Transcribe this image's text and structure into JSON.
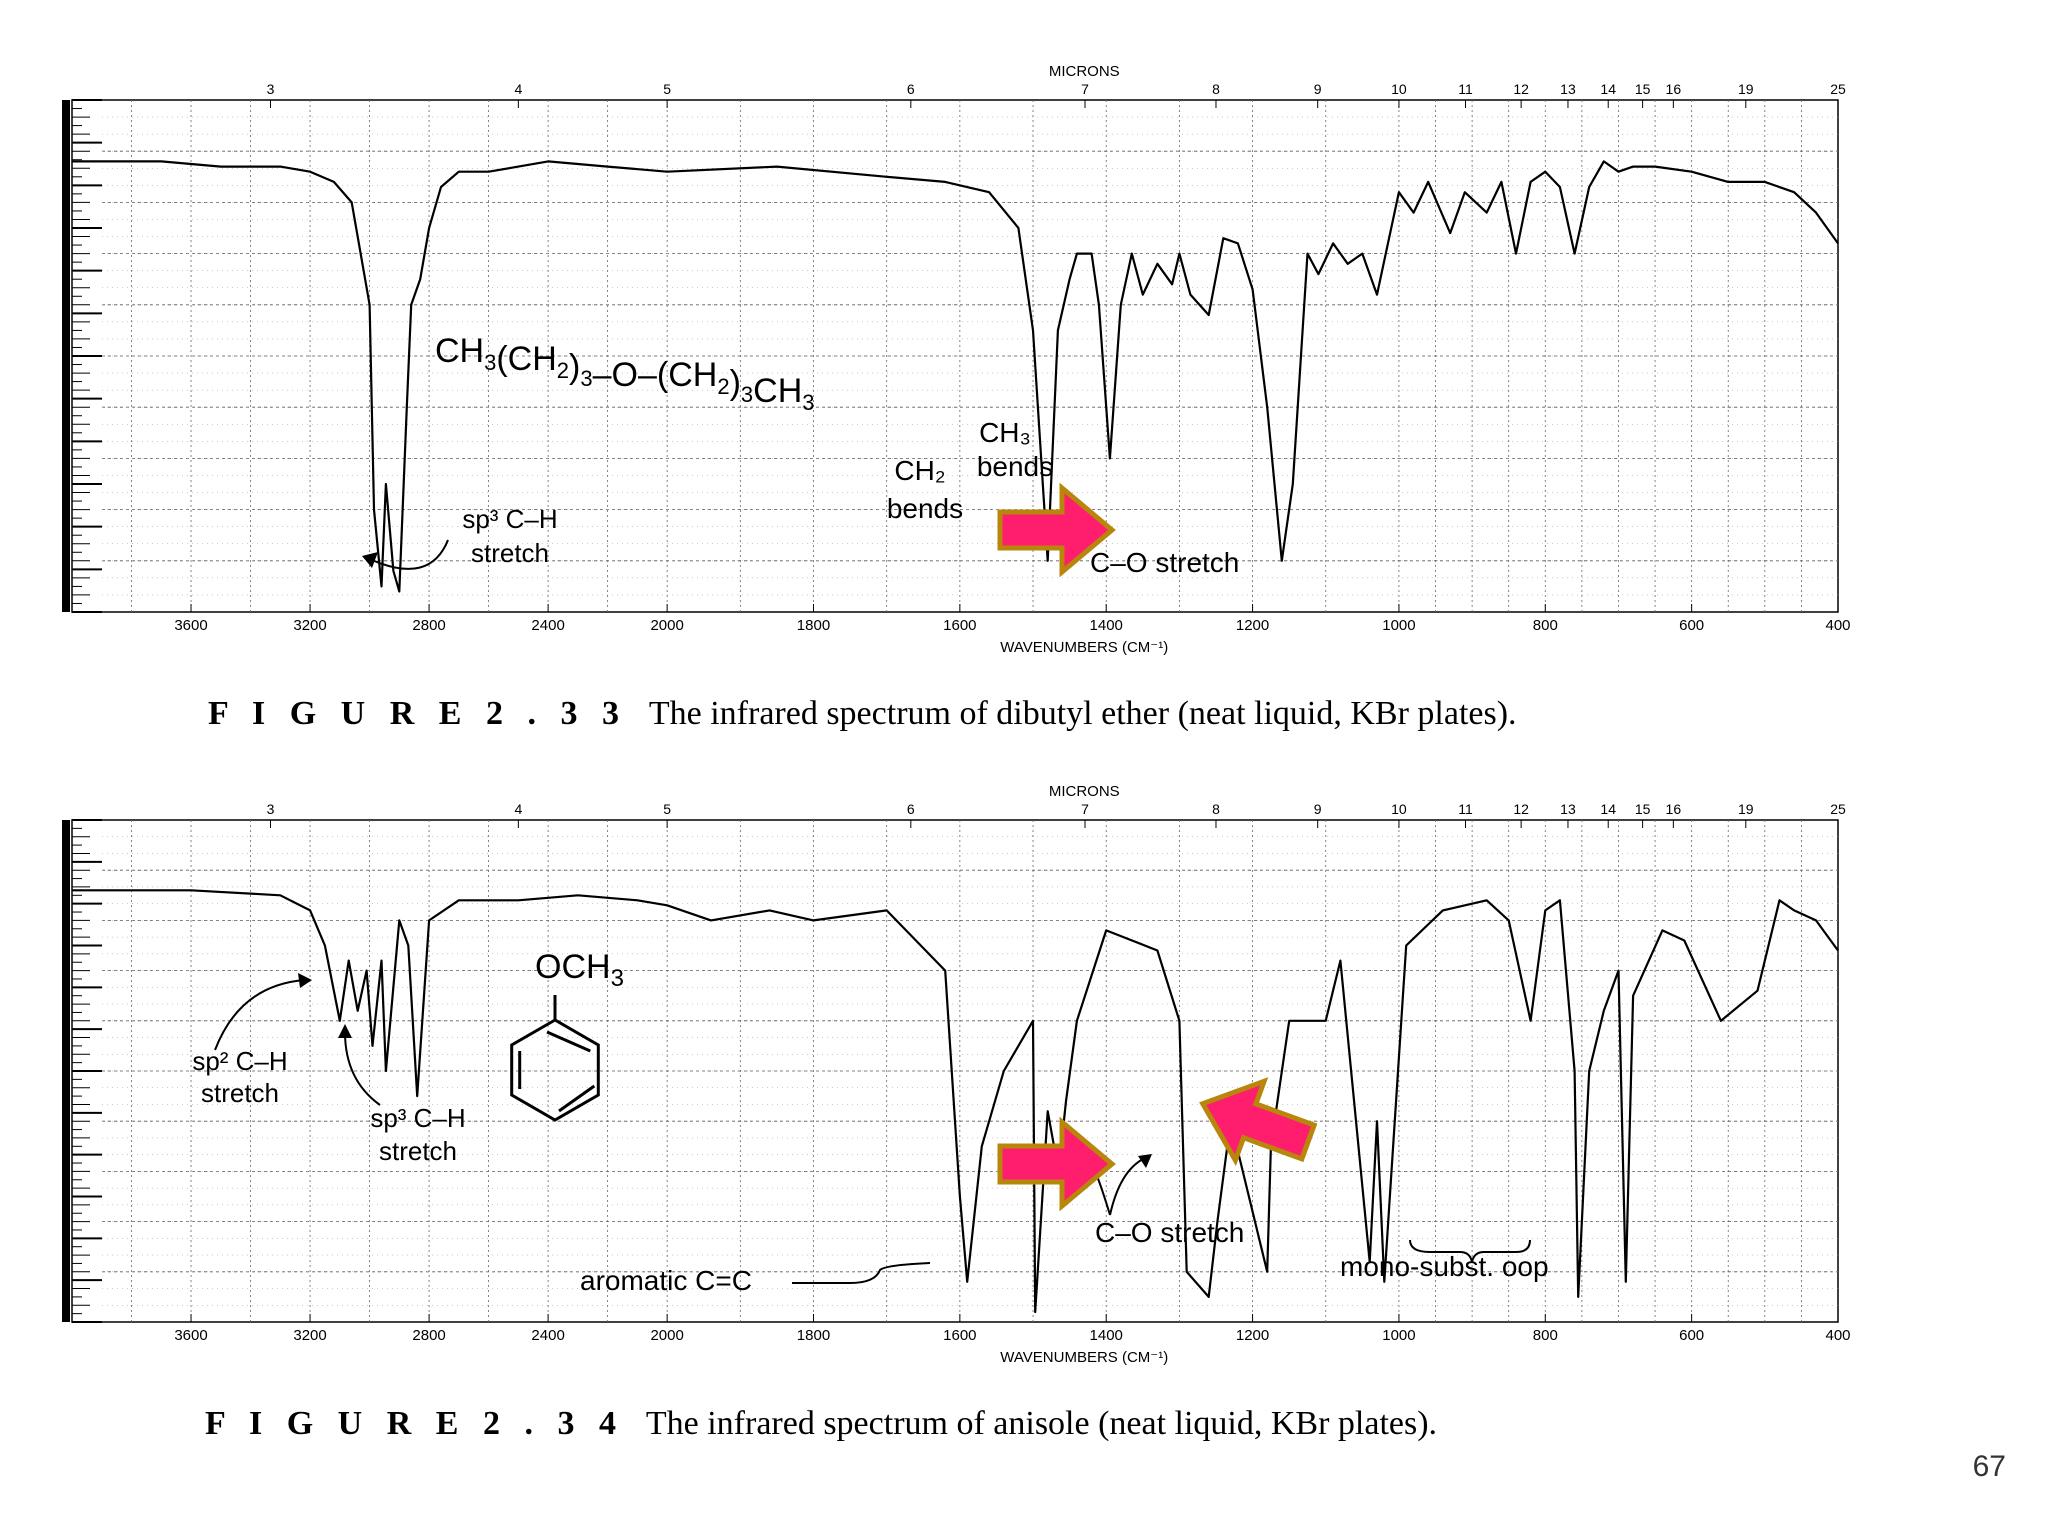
{
  "page_number": "67",
  "colors": {
    "arrow_fill": "#ff1e6e",
    "arrow_stroke": "#b8860b",
    "ink": "#000000"
  },
  "chart_data": [
    {
      "type": "line",
      "x_axis_label": "WAVENUMBERS (CM⁻¹)",
      "x_ticks": [
        "3600",
        "3200",
        "2800",
        "2400",
        "2000",
        "1800",
        "1600",
        "1400",
        "1200",
        "1000",
        "800",
        "600",
        "400"
      ],
      "top_axis_label": "MICRONS",
      "top_ticks": [
        "3",
        "4",
        "5",
        "6",
        "7",
        "8",
        "9",
        "10",
        "11",
        "12",
        "13",
        "14",
        "15",
        "16",
        "19",
        "25"
      ],
      "xlim": [
        4000,
        400
      ],
      "ylim": [
        0,
        100
      ],
      "grid": true,
      "formula": {
        "base": "CH",
        "parts": [
          "3",
          "(CH",
          "2",
          ")",
          "3",
          "–O–(CH",
          "2",
          ")",
          "3",
          "CH",
          "3"
        ]
      },
      "annotations": [
        {
          "lines": [
            "sp³ C–H",
            "stretch"
          ]
        },
        {
          "lines": [
            "CH₃",
            "bends"
          ]
        },
        {
          "lines": [
            "CH₂",
            "bends"
          ]
        },
        {
          "lines": [
            "C–O stretch"
          ]
        }
      ],
      "caption_label": "F I G U R E   2 . 3 3",
      "caption_text": "The infrared spectrum of dibutyl ether (neat liquid, KBr plates).",
      "series": [
        {
          "x": [
            4000,
            3700,
            3500,
            3300,
            3200,
            3120,
            3060,
            3000,
            2985,
            2960,
            2945,
            2920,
            2900,
            2875,
            2860,
            2830,
            2800,
            2760,
            2700,
            2600,
            2500,
            2400,
            2200,
            2000,
            1850,
            1700,
            1620,
            1560,
            1520,
            1500,
            1480,
            1466,
            1450,
            1440,
            1420,
            1410,
            1395,
            1380,
            1365,
            1350,
            1330,
            1310,
            1300,
            1285,
            1260,
            1240,
            1220,
            1200,
            1180,
            1160,
            1145,
            1125,
            1110,
            1090,
            1070,
            1050,
            1030,
            1000,
            980,
            960,
            930,
            910,
            880,
            860,
            840,
            820,
            800,
            780,
            760,
            740,
            720,
            700,
            680,
            650,
            600,
            550,
            500,
            460,
            430,
            400
          ],
          "y": [
            88,
            88,
            87,
            87,
            86,
            84,
            80,
            60,
            20,
            5,
            25,
            8,
            4,
            40,
            60,
            65,
            75,
            83,
            86,
            86,
            87,
            88,
            87,
            86,
            87,
            85,
            84,
            82,
            75,
            55,
            10,
            55,
            65,
            70,
            70,
            60,
            30,
            60,
            70,
            62,
            68,
            64,
            70,
            62,
            58,
            73,
            72,
            63,
            40,
            10,
            25,
            70,
            66,
            72,
            68,
            70,
            62,
            82,
            78,
            84,
            74,
            82,
            78,
            84,
            70,
            84,
            86,
            83,
            70,
            83,
            88,
            86,
            87,
            87,
            86,
            84,
            84,
            82,
            78,
            72
          ]
        }
      ]
    },
    {
      "type": "line",
      "x_axis_label": "WAVENUMBERS (CM⁻¹)",
      "x_ticks": [
        "3600",
        "3200",
        "2800",
        "2400",
        "2000",
        "1800",
        "1600",
        "1400",
        "1200",
        "1000",
        "800",
        "600",
        "400"
      ],
      "top_axis_label": "MICRONS",
      "top_ticks": [
        "3",
        "4",
        "5",
        "6",
        "7",
        "8",
        "9",
        "10",
        "11",
        "12",
        "13",
        "14",
        "15",
        "16",
        "19",
        "25"
      ],
      "xlim": [
        4000,
        400
      ],
      "ylim": [
        0,
        100
      ],
      "grid": true,
      "formula": {
        "base": "OCH",
        "parts": [
          "3"
        ]
      },
      "annotations": [
        {
          "lines": [
            "sp² C–H",
            "stretch"
          ]
        },
        {
          "lines": [
            "sp³ C–H",
            "stretch"
          ]
        },
        {
          "lines": [
            "C–O stretch"
          ]
        },
        {
          "lines": [
            "aromatic C=C"
          ]
        },
        {
          "lines": [
            "mono-subst. oop"
          ]
        }
      ],
      "caption_label": "F I G U R E   2 . 3 4",
      "caption_text": "The infrared spectrum of anisole (neat liquid, KBr plates).",
      "series": [
        {
          "x": [
            4000,
            3600,
            3300,
            3200,
            3150,
            3100,
            3070,
            3040,
            3010,
            2990,
            2960,
            2945,
            2900,
            2870,
            2840,
            2800,
            2700,
            2500,
            2300,
            2100,
            2000,
            1940,
            1860,
            1800,
            1700,
            1620,
            1600,
            1590,
            1570,
            1540,
            1500,
            1497,
            1480,
            1465,
            1455,
            1440,
            1400,
            1330,
            1300,
            1290,
            1260,
            1248,
            1230,
            1180,
            1175,
            1150,
            1100,
            1080,
            1040,
            1030,
            1020,
            990,
            940,
            880,
            850,
            820,
            800,
            780,
            760,
            755,
            740,
            720,
            700,
            690,
            680,
            640,
            610,
            560,
            510,
            480,
            460,
            430,
            400
          ],
          "y": [
            86,
            86,
            85,
            82,
            75,
            60,
            72,
            62,
            70,
            55,
            72,
            50,
            80,
            75,
            45,
            80,
            84,
            84,
            85,
            84,
            83,
            80,
            82,
            80,
            82,
            70,
            25,
            8,
            35,
            50,
            60,
            2,
            42,
            30,
            44,
            60,
            78,
            74,
            60,
            10,
            5,
            20,
            40,
            10,
            35,
            60,
            60,
            72,
            12,
            40,
            8,
            75,
            82,
            84,
            80,
            60,
            82,
            84,
            50,
            5,
            50,
            62,
            70,
            8,
            65,
            78,
            76,
            60,
            66,
            84,
            82,
            80,
            74
          ]
        }
      ]
    }
  ]
}
